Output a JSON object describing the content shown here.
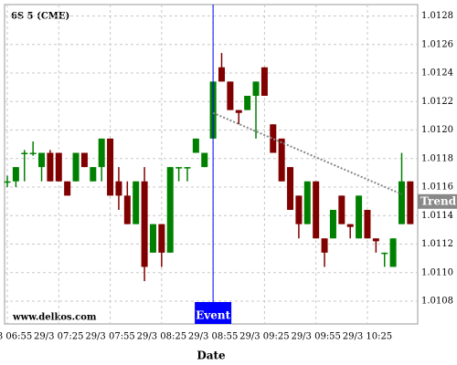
{
  "chart_data": {
    "type": "candlestick",
    "title": "6S 5 (CME)",
    "watermark": "www.delkos.com",
    "x_label": "Date",
    "categories": [
      "29/3 06:55",
      null,
      null,
      null,
      null,
      null,
      "29/3 07:25",
      null,
      null,
      null,
      null,
      null,
      "29/3 07:55",
      null,
      null,
      null,
      null,
      null,
      "29/3 08:25",
      null,
      null,
      null,
      null,
      null,
      "29/3 08:55",
      null,
      null,
      null,
      null,
      null,
      "29/3 09:25",
      null,
      null,
      null,
      null,
      null,
      "29/3 09:55",
      null,
      null,
      null,
      null,
      null,
      "29/3 10:25",
      null,
      null,
      null,
      null,
      null
    ],
    "open": [
      1.01164,
      1.01164,
      1.01184,
      1.01184,
      1.01174,
      1.01184,
      1.01184,
      1.01164,
      1.01164,
      1.01184,
      1.01164,
      1.01174,
      1.01194,
      1.01164,
      1.01154,
      1.01134,
      1.01164,
      1.01114,
      1.01134,
      1.01114,
      1.01174,
      1.01174,
      1.01184,
      1.01174,
      1.01194,
      1.01244,
      1.01234,
      1.01214,
      1.01214,
      1.01224,
      1.01244,
      1.01204,
      1.01194,
      1.01174,
      1.01154,
      1.01134,
      1.01164,
      1.01124,
      1.01124,
      1.01154,
      1.01134,
      1.01124,
      1.01144,
      1.01124,
      1.01114,
      1.01104,
      1.01134,
      1.01164
    ],
    "high": [
      1.01168,
      1.01174,
      1.01186,
      1.01192,
      1.01184,
      1.01186,
      1.01184,
      1.01164,
      1.01184,
      1.01184,
      1.01174,
      1.01194,
      1.01194,
      1.01174,
      1.01164,
      1.01164,
      1.01174,
      1.01134,
      1.01134,
      1.01174,
      1.01174,
      1.01174,
      1.01194,
      1.01184,
      1.01234,
      1.01254,
      1.01234,
      1.01214,
      1.01224,
      1.01234,
      1.01244,
      1.01204,
      1.01194,
      1.01174,
      1.01154,
      1.01164,
      1.01164,
      1.01124,
      1.01144,
      1.01154,
      1.01134,
      1.01154,
      1.01144,
      1.01124,
      1.01114,
      1.01124,
      1.01184,
      1.01164
    ],
    "low": [
      1.0116,
      1.0116,
      1.01164,
      1.01182,
      1.01164,
      1.01164,
      1.01164,
      1.01154,
      1.01164,
      1.01174,
      1.01164,
      1.01164,
      1.01154,
      1.01144,
      1.01134,
      1.01134,
      1.01094,
      1.01114,
      1.01104,
      1.01114,
      1.01164,
      1.01164,
      1.01184,
      1.01174,
      1.01194,
      1.01234,
      1.01214,
      1.01204,
      1.01214,
      1.01194,
      1.01224,
      1.01184,
      1.01164,
      1.01144,
      1.01124,
      1.01134,
      1.01124,
      1.01104,
      1.01124,
      1.01134,
      1.01124,
      1.01124,
      1.01124,
      1.01114,
      1.01104,
      1.01104,
      1.01134,
      1.01134
    ],
    "close": [
      1.01164,
      1.01174,
      1.01184,
      1.01184,
      1.01184,
      1.01164,
      1.01164,
      1.01154,
      1.01184,
      1.01174,
      1.01174,
      1.01194,
      1.01154,
      1.01154,
      1.01134,
      1.01164,
      1.01104,
      1.01134,
      1.01114,
      1.01174,
      1.01174,
      1.01174,
      1.01194,
      1.01184,
      1.01234,
      1.01234,
      1.01214,
      1.01212,
      1.01224,
      1.01234,
      1.01224,
      1.01184,
      1.01164,
      1.01144,
      1.01134,
      1.01164,
      1.01124,
      1.01114,
      1.01144,
      1.01134,
      1.01132,
      1.01154,
      1.01124,
      1.01122,
      1.01114,
      1.01124,
      1.01164,
      1.01134
    ],
    "up_color": "#008000",
    "down_color": "#800000",
    "ylim": [
      1.01064,
      1.01288
    ],
    "yticks": [
      1.0108,
      {
        "value": 1.011,
        "label": "1.0110"
      },
      1.0112,
      1.0114,
      1.0116,
      1.0118,
      {
        "value": 1.012,
        "label": "1.0120"
      },
      1.0122,
      1.0124,
      1.0126,
      1.0128
    ],
    "grid": true,
    "event": {
      "label": "Event",
      "index": 24,
      "color": "#0000ff"
    },
    "trend": {
      "label": "Trend",
      "index": [
        24,
        46
      ],
      "values": [
        1.01212,
        1.01155
      ],
      "color": "#888888"
    }
  }
}
